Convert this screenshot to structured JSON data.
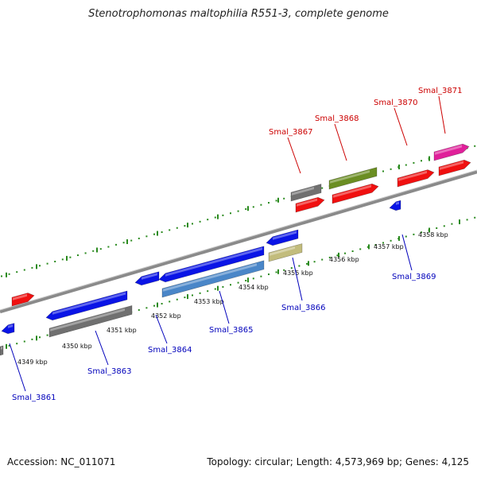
{
  "title": "Stenotrophomonas maltophilia R551-3, complete genome",
  "footer": {
    "accession": "Accession: NC_011071",
    "summary": "Topology: circular; Length: 4,573,969 bp; Genes: 4,125"
  },
  "colors": {
    "backbone": "#8a8a8a",
    "dotted_track": "#2a8a1e",
    "forward_label": "#cc0000",
    "reverse_label": "#0000bb",
    "blue": "#0a14e6",
    "red": "#f01010",
    "gray": "#707070",
    "steelblue": "#4a86c8",
    "olive": "#6b8e23",
    "khaki": "#c2bc7c",
    "magenta": "#e0209a"
  },
  "kbp_ticks": [
    "4349 kbp",
    "4350 kbp",
    "4351 kbp",
    "4352 kbp",
    "4353 kbp",
    "4354 kbp",
    "4355 kbp",
    "4356 kbp",
    "4357 kbp",
    "4358 kbp"
  ],
  "gene_labels": {
    "top": [
      "Smal_3867",
      "Smal_3868",
      "Smal_3870",
      "Smal_3871"
    ],
    "bottom": [
      "Smal_3861",
      "Smal_3863",
      "Smal_3864",
      "Smal_3865",
      "Smal_3866",
      "Smal_3869"
    ]
  }
}
